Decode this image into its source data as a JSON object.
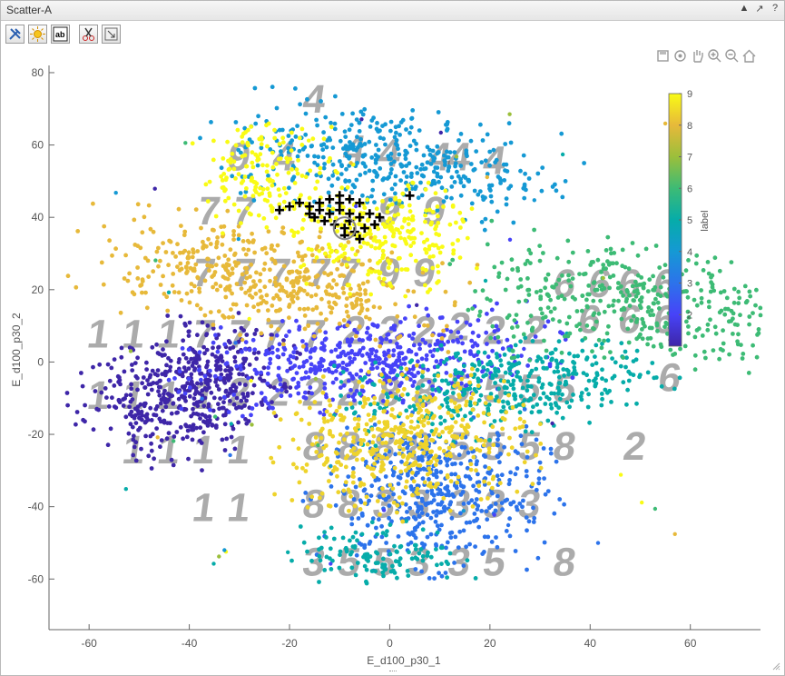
{
  "window": {
    "title": "Scatter-A",
    "controls": [
      "▲",
      "↗",
      "?"
    ]
  },
  "toolbar": {
    "buttons": [
      {
        "name": "tools-button",
        "icon": "tools-icon"
      },
      {
        "name": "light-button",
        "icon": "sun-icon"
      },
      {
        "name": "text-label-button",
        "icon": "text-ab-icon"
      },
      {
        "name": "cut-button",
        "icon": "scissors-icon"
      },
      {
        "name": "dock-button",
        "icon": "dock-arrow-icon"
      }
    ]
  },
  "axes_toolbar": [
    "save-icon",
    "rotate-icon",
    "pan-icon",
    "zoom-in-icon",
    "zoom-out-icon",
    "home-icon"
  ],
  "chart_data": {
    "type": "scatter",
    "title": "",
    "xlabel": "E_d100_p30_1",
    "ylabel": "E_d100_p30_2",
    "xlim": [
      -68,
      74
    ],
    "ylim": [
      -74,
      82
    ],
    "xticks": [
      -60,
      -40,
      -20,
      0,
      20,
      40,
      60
    ],
    "yticks": [
      -60,
      -40,
      -20,
      0,
      20,
      40,
      60,
      80
    ],
    "grid": false,
    "colorbar": {
      "label": "label",
      "min": 1,
      "max": 9,
      "ticks": [
        2,
        3,
        4,
        5,
        6,
        7,
        8,
        9
      ],
      "colormap": "parula",
      "colors": [
        "#3e26a8",
        "#4743f8",
        "#2c73eb",
        "#1599d4",
        "#06aca9",
        "#3dbb75",
        "#9bbf3b",
        "#e7b93a",
        "#f9fb15"
      ]
    },
    "clusters": [
      {
        "label": 1,
        "center": [
          -40,
          -8
        ],
        "count": 520,
        "spread": [
          8,
          10
        ],
        "shape": "band",
        "angle": -48
      },
      {
        "label": 2,
        "center": [
          -5,
          0
        ],
        "count": 520,
        "spread": [
          17,
          6
        ],
        "shape": "ellipse",
        "angle": 8
      },
      {
        "label": 3,
        "center": [
          9,
          -36
        ],
        "count": 480,
        "spread": [
          11,
          10
        ],
        "shape": "ellipse",
        "angle": 0
      },
      {
        "label": 4,
        "center": [
          0,
          56
        ],
        "count": 430,
        "spread": [
          16,
          7
        ],
        "shape": "ellipse",
        "angle": -12
      },
      {
        "label": 5,
        "center": [
          22,
          -7
        ],
        "count": 400,
        "spread": [
          15,
          6
        ],
        "shape": "ellipse",
        "angle": 12
      },
      {
        "label": 5,
        "center": [
          -2,
          -53
        ],
        "count": 120,
        "spread": [
          8,
          4
        ],
        "shape": "ellipse",
        "angle": 0
      },
      {
        "label": 6,
        "center": [
          49,
          16
        ],
        "count": 420,
        "spread": [
          16,
          8
        ],
        "shape": "ellipse",
        "angle": -10
      },
      {
        "label": 8,
        "center": [
          -25,
          23
        ],
        "count": 480,
        "spread": [
          17,
          7
        ],
        "shape": "ellipse",
        "angle": -15
      },
      {
        "label": 9,
        "center": [
          -1,
          34
        ],
        "count": 260,
        "spread": [
          8,
          7
        ],
        "shape": "ellipse",
        "angle": 0
      },
      {
        "label": 9,
        "center": [
          -24,
          52
        ],
        "count": 170,
        "spread": [
          7,
          7
        ],
        "shape": "ellipse",
        "angle": 0
      },
      {
        "label": 8.4,
        "center": [
          2,
          -22
        ],
        "count": 480,
        "spread": [
          12,
          9
        ],
        "shape": "ellipse",
        "angle": 15
      }
    ],
    "selected_markers": {
      "marker": "plus",
      "color": "#000000",
      "points": [
        [
          -22,
          42
        ],
        [
          -20,
          43
        ],
        [
          -18,
          44
        ],
        [
          -16,
          43
        ],
        [
          -14,
          44
        ],
        [
          -12,
          45
        ],
        [
          -10,
          46
        ],
        [
          -8,
          45
        ],
        [
          -6,
          44
        ],
        [
          -15,
          40
        ],
        [
          -13,
          39
        ],
        [
          -11,
          38
        ],
        [
          -9,
          37
        ],
        [
          -7,
          36
        ],
        [
          -5,
          37
        ],
        [
          -3,
          38
        ],
        [
          -4,
          41
        ],
        [
          -6,
          40
        ],
        [
          -8,
          41
        ],
        [
          -10,
          42
        ],
        [
          -12,
          41
        ],
        [
          -14,
          42
        ],
        [
          -2,
          40
        ],
        [
          -8,
          39
        ],
        [
          -9,
          35
        ],
        [
          -6,
          34
        ],
        [
          4,
          46
        ],
        [
          -10,
          44
        ],
        [
          -16,
          41
        ]
      ],
      "highlight_circle": [
        -9,
        37
      ]
    },
    "digit_thumbnails": [
      {
        "digit": "4",
        "x": -15,
        "y": 73
      },
      {
        "digit": "9",
        "x": -30,
        "y": 57
      },
      {
        "digit": "4",
        "x": -21,
        "y": 57
      },
      {
        "digit": "4",
        "x": -7,
        "y": 59
      },
      {
        "digit": "4",
        "x": 0,
        "y": 58
      },
      {
        "digit": "4",
        "x": 10,
        "y": 57
      },
      {
        "digit": "4",
        "x": 14,
        "y": 57
      },
      {
        "digit": "4",
        "x": 21,
        "y": 56
      },
      {
        "digit": "7",
        "x": -36,
        "y": 42
      },
      {
        "digit": "7",
        "x": -29,
        "y": 42
      },
      {
        "digit": "9",
        "x": 0,
        "y": 42
      },
      {
        "digit": "9",
        "x": 9,
        "y": 42
      },
      {
        "digit": "7",
        "x": -37,
        "y": 25
      },
      {
        "digit": "7",
        "x": -29,
        "y": 25
      },
      {
        "digit": "7",
        "x": -22,
        "y": 25
      },
      {
        "digit": "7",
        "x": -14,
        "y": 25
      },
      {
        "digit": "7",
        "x": -8,
        "y": 25
      },
      {
        "digit": "9",
        "x": 0,
        "y": 25
      },
      {
        "digit": "9",
        "x": 7,
        "y": 25
      },
      {
        "digit": "1",
        "x": -58,
        "y": 8
      },
      {
        "digit": "1",
        "x": -51,
        "y": 8
      },
      {
        "digit": "1",
        "x": -44,
        "y": 8
      },
      {
        "digit": "7",
        "x": -37,
        "y": 8
      },
      {
        "digit": "7",
        "x": -30,
        "y": 8
      },
      {
        "digit": "7",
        "x": -23,
        "y": 8
      },
      {
        "digit": "7",
        "x": -15,
        "y": 8
      },
      {
        "digit": "2",
        "x": -7,
        "y": 9
      },
      {
        "digit": "2",
        "x": 0,
        "y": 9
      },
      {
        "digit": "2",
        "x": 7,
        "y": 9
      },
      {
        "digit": "2",
        "x": 14,
        "y": 10
      },
      {
        "digit": "2",
        "x": 21,
        "y": 9
      },
      {
        "digit": "2",
        "x": 29,
        "y": 9
      },
      {
        "digit": "6",
        "x": 35,
        "y": 22
      },
      {
        "digit": "6",
        "x": 42,
        "y": 22
      },
      {
        "digit": "6",
        "x": 48,
        "y": 22
      },
      {
        "digit": "6",
        "x": 55,
        "y": 22
      },
      {
        "digit": "6",
        "x": 40,
        "y": 12
      },
      {
        "digit": "6",
        "x": 48,
        "y": 12
      },
      {
        "digit": "6",
        "x": 55,
        "y": 12
      },
      {
        "digit": "1",
        "x": -58,
        "y": -9
      },
      {
        "digit": "1",
        "x": -51,
        "y": -9
      },
      {
        "digit": "1",
        "x": -44,
        "y": -9
      },
      {
        "digit": "1",
        "x": -37,
        "y": -9
      },
      {
        "digit": "2",
        "x": -30,
        "y": -8
      },
      {
        "digit": "2",
        "x": -22,
        "y": -8
      },
      {
        "digit": "2",
        "x": -15,
        "y": -8
      },
      {
        "digit": "2",
        "x": -8,
        "y": -8
      },
      {
        "digit": "8",
        "x": 0,
        "y": -8
      },
      {
        "digit": "8",
        "x": 7,
        "y": -8
      },
      {
        "digit": "5",
        "x": 14,
        "y": -7
      },
      {
        "digit": "5",
        "x": 21,
        "y": -7
      },
      {
        "digit": "5",
        "x": 28,
        "y": -7
      },
      {
        "digit": "5",
        "x": 35,
        "y": -7
      },
      {
        "digit": "6",
        "x": 56,
        "y": -4
      },
      {
        "digit": "1",
        "x": -51,
        "y": -24
      },
      {
        "digit": "1",
        "x": -44,
        "y": -24
      },
      {
        "digit": "1",
        "x": -37,
        "y": -24
      },
      {
        "digit": "1",
        "x": -30,
        "y": -24
      },
      {
        "digit": "8",
        "x": -15,
        "y": -23
      },
      {
        "digit": "8",
        "x": -8,
        "y": -23
      },
      {
        "digit": "8",
        "x": -1,
        "y": -23
      },
      {
        "digit": "8",
        "x": 6,
        "y": -23
      },
      {
        "digit": "5",
        "x": 14,
        "y": -23
      },
      {
        "digit": "5",
        "x": 21,
        "y": -23
      },
      {
        "digit": "5",
        "x": 28,
        "y": -23
      },
      {
        "digit": "8",
        "x": 35,
        "y": -23
      },
      {
        "digit": "2",
        "x": 49,
        "y": -23
      },
      {
        "digit": "1",
        "x": -37,
        "y": -40
      },
      {
        "digit": "1",
        "x": -30,
        "y": -40
      },
      {
        "digit": "8",
        "x": -15,
        "y": -39
      },
      {
        "digit": "8",
        "x": -8,
        "y": -39
      },
      {
        "digit": "3",
        "x": -1,
        "y": -39
      },
      {
        "digit": "3",
        "x": 6,
        "y": -39
      },
      {
        "digit": "3",
        "x": 14,
        "y": -39
      },
      {
        "digit": "3",
        "x": 21,
        "y": -39
      },
      {
        "digit": "3",
        "x": 28,
        "y": -39
      },
      {
        "digit": "3",
        "x": -15,
        "y": -55
      },
      {
        "digit": "5",
        "x": -8,
        "y": -55
      },
      {
        "digit": "5",
        "x": -1,
        "y": -55
      },
      {
        "digit": "3",
        "x": 6,
        "y": -55
      },
      {
        "digit": "3",
        "x": 14,
        "y": -55
      },
      {
        "digit": "5",
        "x": 21,
        "y": -55
      },
      {
        "digit": "8",
        "x": 35,
        "y": -55
      }
    ]
  }
}
